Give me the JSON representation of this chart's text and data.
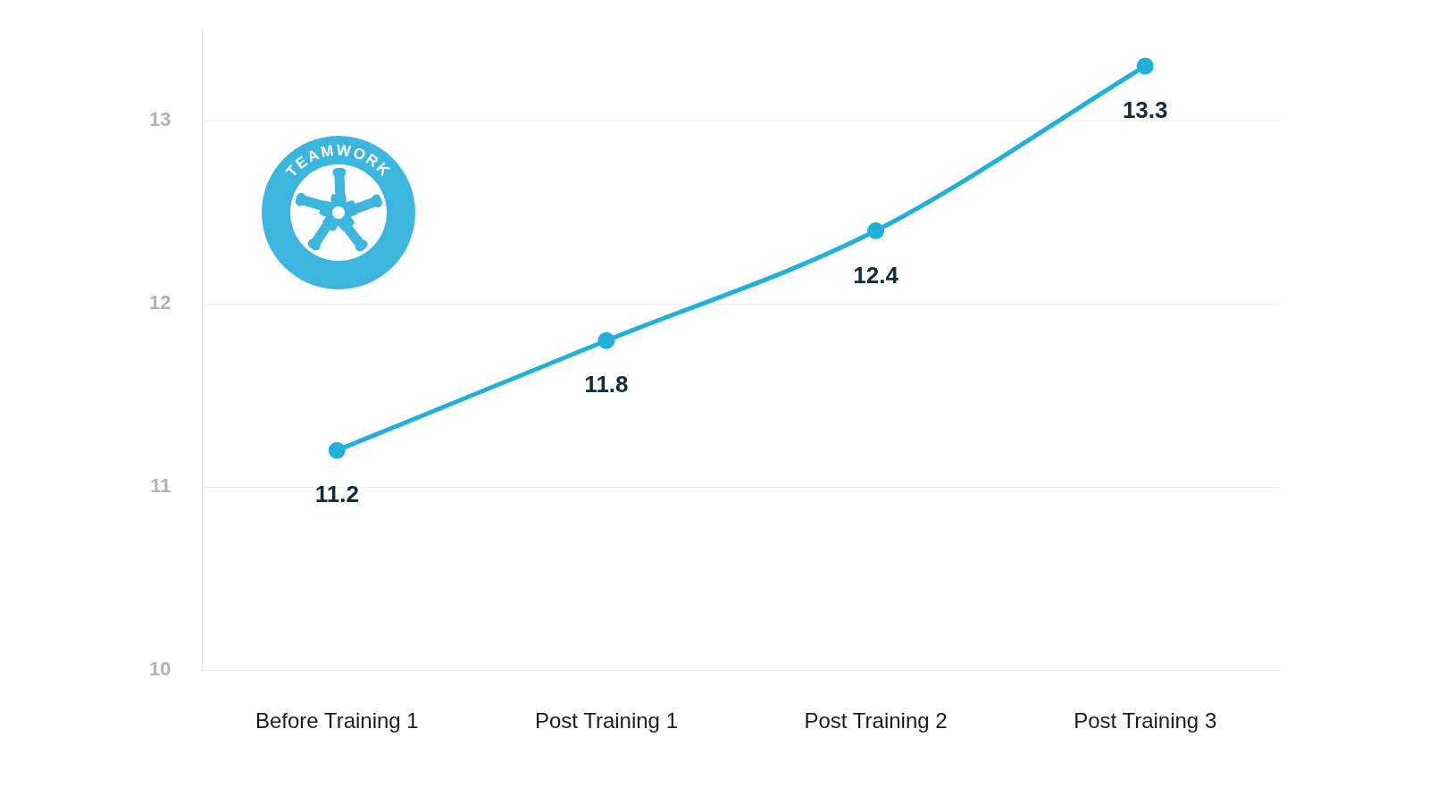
{
  "chart_data": {
    "type": "line",
    "categories": [
      "Before Training 1",
      "Post Training 1",
      "Post Training 2",
      "Post Training 3"
    ],
    "series": [
      {
        "color": "#1fb0dc",
        "values": [
          11.2,
          11.8,
          12.4,
          13.3
        ]
      }
    ],
    "ylim": [
      10,
      13.5
    ],
    "yticks": [
      10,
      11,
      12,
      13
    ],
    "grid": "y",
    "marker": "circle",
    "line_style": "solid",
    "data_labels": true,
    "annotations": [
      "TEAMWORK"
    ]
  }
}
